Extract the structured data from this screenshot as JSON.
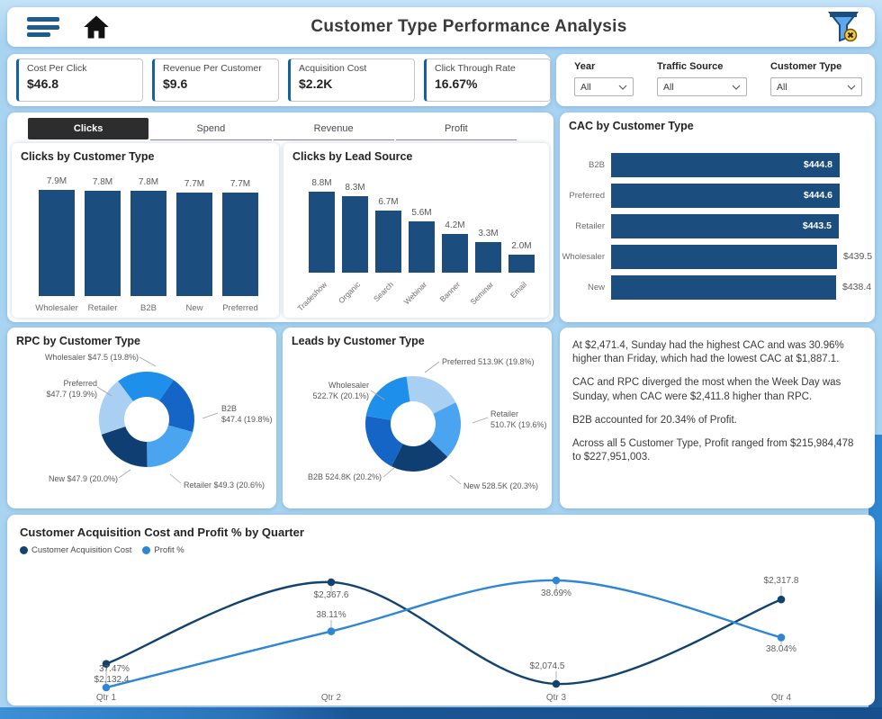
{
  "header": {
    "title": "Customer Type Performance Analysis"
  },
  "kpis": [
    {
      "label": "Cost Per Click",
      "value": "$46.8"
    },
    {
      "label": "Revenue Per Customer",
      "value": "$9.6"
    },
    {
      "label": "Acquisition Cost",
      "value": "$2.2K"
    },
    {
      "label": "Click Through Rate",
      "value": "16.67%"
    }
  ],
  "filters": {
    "groups": [
      {
        "label": "Year",
        "value": "All"
      },
      {
        "label": "Traffic Source",
        "value": "All"
      },
      {
        "label": "Customer Type",
        "value": "All"
      }
    ]
  },
  "tabs": {
    "items": [
      {
        "label": "Clicks",
        "active": true
      },
      {
        "label": "Spend",
        "active": false
      },
      {
        "label": "Revenue",
        "active": false
      },
      {
        "label": "Profit",
        "active": false
      }
    ]
  },
  "insights": {
    "paragraphs": [
      "At $2,471.4, Sunday had the highest CAC and was 30.96% higher than Friday, which had the lowest CAC at $1,887.1.",
      "CAC and RPC diverged the most when the Week Day was Sunday, when CAC were $2,411.8 higher than RPC.",
      "B2B accounted for 20.34% of Profit.",
      "Across all 5 Customer Type, Profit ranged from $215,984,478 to $227,951,003."
    ]
  },
  "colors": {
    "bar_blue": "#1b4e7f",
    "accent": "#1261a0",
    "cac_line": "#12436f",
    "profit_line": "#2e86d5",
    "donut_bright": "#1e8feb",
    "donut_royal": "#1565c6",
    "donut_light": "#4ba4ef",
    "donut_navy": "#0e3e72",
    "donut_pale": "#a9cff2"
  },
  "chart_data": [
    {
      "id": "clicks_by_customer_type",
      "type": "bar",
      "title": "Clicks by Customer Type",
      "categories": [
        "Wholesaler",
        "Retailer",
        "B2B",
        "New",
        "Preferred"
      ],
      "values": [
        7.9,
        7.8,
        7.8,
        7.7,
        7.7
      ],
      "labels": [
        "7.9M",
        "7.8M",
        "7.8M",
        "7.7M",
        "7.7M"
      ],
      "ylim": [
        0,
        7.9
      ],
      "unit": "M clicks"
    },
    {
      "id": "clicks_by_lead_source",
      "type": "bar",
      "title": "Clicks by Lead Source",
      "categories": [
        "Tradeshow",
        "Organic",
        "Search",
        "Webinar",
        "Banner",
        "Seminar",
        "Email"
      ],
      "values": [
        8.8,
        8.3,
        6.7,
        5.6,
        4.2,
        3.3,
        2.0
      ],
      "labels": [
        "8.8M",
        "8.3M",
        "6.7M",
        "5.6M",
        "4.2M",
        "3.3M",
        "2.0M"
      ],
      "ylim": [
        0,
        8.8
      ],
      "unit": "M clicks"
    },
    {
      "id": "cac_by_customer_type",
      "type": "bar",
      "title": "CAC by Customer Type",
      "orientation": "horizontal",
      "categories": [
        "B2B",
        "Preferred",
        "Retailer",
        "Wholesaler",
        "New"
      ],
      "values": [
        444.8,
        444.6,
        443.5,
        439.5,
        438.4
      ],
      "labels": [
        "$444.8",
        "$444.6",
        "$443.5",
        "$439.5",
        "$438.4"
      ],
      "label_inside": [
        true,
        true,
        true,
        false,
        false
      ],
      "xlim": [
        0,
        444.8
      ]
    },
    {
      "id": "rpc_by_customer_type",
      "type": "pie",
      "title": "RPC by Customer Type",
      "start_angle": -37,
      "segments": [
        {
          "name": "Wholesaler",
          "value": "$47.5",
          "pct": 19.8,
          "label": "Wholesaler $47.5 (19.8%)",
          "color": "#1e8feb"
        },
        {
          "name": "B2B",
          "value": "$47.4",
          "pct": 19.8,
          "label": "B2B\n$47.4 (19.8%)",
          "color": "#1565c6"
        },
        {
          "name": "Retailer",
          "value": "$49.3",
          "pct": 20.6,
          "label": "Retailer $49.3 (20.6%)",
          "color": "#4ba4ef"
        },
        {
          "name": "New",
          "value": "$47.9",
          "pct": 20.0,
          "label": "New $47.9 (20.0%)",
          "color": "#0e3e72"
        },
        {
          "name": "Preferred",
          "value": "$47.7",
          "pct": 19.9,
          "label": "Preferred\n$47.7 (19.9%)",
          "color": "#a9cff2"
        }
      ]
    },
    {
      "id": "leads_by_customer_type",
      "type": "pie",
      "title": "Leads by Customer Type",
      "start_angle": -8,
      "segments": [
        {
          "name": "Preferred",
          "value": "513.9K",
          "pct": 19.8,
          "label": "Preferred 513.9K (19.8%)",
          "color": "#a9cff2"
        },
        {
          "name": "Retailer",
          "value": "510.7K",
          "pct": 19.6,
          "label": "Retailer\n510.7K (19.6%)",
          "color": "#4ba4ef"
        },
        {
          "name": "New",
          "value": "528.5K",
          "pct": 20.3,
          "label": "New 528.5K (20.3%)",
          "color": "#0e3e72"
        },
        {
          "name": "B2B",
          "value": "524.8K",
          "pct": 20.2,
          "label": "B2B 524.8K (20.2%)",
          "color": "#1565c6"
        },
        {
          "name": "Wholesaler",
          "value": "522.7K",
          "pct": 20.1,
          "label": "Wholesaler\n522.7K (20.1%)",
          "color": "#1e8feb"
        }
      ]
    },
    {
      "id": "cac_profit_by_quarter",
      "type": "line",
      "title": "Customer Acquisition Cost and Profit % by Quarter",
      "categories": [
        "Qtr 1",
        "Qtr 2",
        "Qtr 3",
        "Qtr 4"
      ],
      "series": [
        {
          "name": "Customer Acquisition Cost",
          "values": [
            2132.4,
            2367.6,
            2074.5,
            2317.8
          ],
          "labels": [
            "$2,132.4",
            "$2,367.6",
            "$2,074.5",
            "$2,317.8"
          ],
          "color": "#12436f"
        },
        {
          "name": "Profit %",
          "values": [
            37.47,
            38.11,
            38.69,
            38.04
          ],
          "labels": [
            "37.47%",
            "38.11%",
            "38.69%",
            "38.04%"
          ],
          "color": "#2e86d5"
        }
      ],
      "legend_position": "top-left",
      "grid": false
    }
  ]
}
